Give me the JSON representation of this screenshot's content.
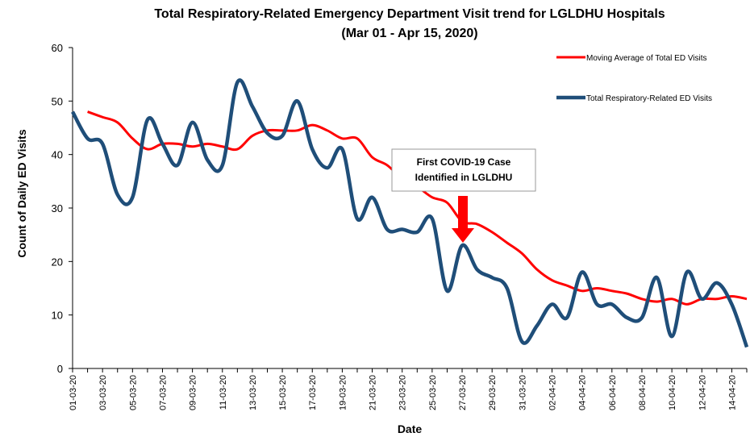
{
  "chart_data": {
    "type": "line",
    "title": "Total Respiratory-Related Emergency Department Visit trend for LGLDHU Hospitals",
    "subtitle": "(Mar 01 - Apr 15, 2020)",
    "x_label": "Date",
    "y_label": "Count of Daily ED Visits",
    "annotation": [
      "First COVID-19 Case",
      "Identified in LGLDHU"
    ],
    "categories": [
      "01-03-20",
      null,
      "03-03-20",
      null,
      "05-03-20",
      null,
      "07-03-20",
      null,
      "09-03-20",
      null,
      "11-03-20",
      null,
      "13-03-20",
      null,
      "15-03-20",
      null,
      "17-03-20",
      null,
      "19-03-20",
      null,
      "21-03-20",
      null,
      "23-03-20",
      null,
      "25-03-20",
      null,
      "27-03-20",
      null,
      "29-03-20",
      null,
      "31-03-20",
      null,
      "02-04-20",
      null,
      "04-04-20",
      null,
      "06-04-20",
      null,
      "08-04-20",
      null,
      "10-04-20",
      null,
      "12-04-20",
      null,
      "14-04-20",
      null
    ],
    "series": [
      {
        "name": "Moving Average of Total ED Visits",
        "color": "#ff0000",
        "width": 3,
        "values": [
          null,
          48,
          47,
          46,
          43,
          41,
          42,
          42,
          41.5,
          42,
          41.5,
          41,
          43.5,
          44.5,
          44.5,
          44.5,
          45.5,
          44.5,
          43,
          43,
          39.5,
          38,
          35.5,
          34,
          32,
          31,
          27.5,
          27,
          25.5,
          23.5,
          21.5,
          18.5,
          16.5,
          15.5,
          14.5,
          15,
          14.5,
          14,
          13,
          12.5,
          13,
          12,
          13,
          13,
          13.5,
          13
        ]
      },
      {
        "name": "Total Respiratory-Related ED Visits",
        "color": "#1f4e79",
        "width": 4.5,
        "values": [
          48,
          43,
          42,
          32.5,
          32,
          46.5,
          42,
          38,
          46,
          39,
          38,
          53.5,
          49,
          44,
          43.5,
          50,
          41,
          37.5,
          41,
          28,
          32,
          26,
          26,
          25.5,
          28,
          14.5,
          23,
          18.5,
          17,
          15,
          5,
          8,
          12,
          9.5,
          18,
          12,
          12,
          9.5,
          9.5,
          17,
          6,
          18,
          13,
          16,
          12,
          4
        ]
      }
    ],
    "ylim": [
      0,
      60
    ],
    "yticks": [
      0,
      10,
      20,
      30,
      40,
      50,
      60
    ],
    "grid": false
  }
}
